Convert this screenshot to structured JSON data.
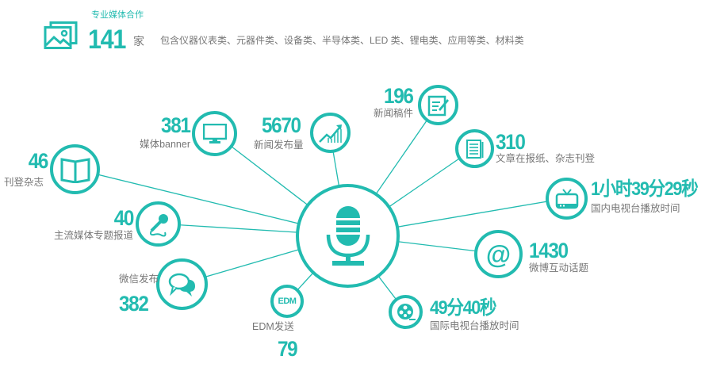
{
  "header": {
    "subtitle": "专业媒体合作",
    "count": "141",
    "unit": "家",
    "description": "包含仪器仪表类、元器件类、设备类、半导体类、LED 类、锂电类、应用等类、材料类",
    "icon": "image-gallery-icon"
  },
  "accent_color": "#22bbb0",
  "center": {
    "icon": "microphone-icon"
  },
  "nodes": [
    {
      "id": "magazine",
      "value": "46",
      "label": "刊登杂志",
      "icon": "open-book-icon"
    },
    {
      "id": "banner",
      "value": "381",
      "label": "媒体banner",
      "icon": "monitor-icon"
    },
    {
      "id": "news-volume",
      "value": "5670",
      "label": "新闻发布量",
      "icon": "growth-chart-icon"
    },
    {
      "id": "press",
      "value": "196",
      "label": "新闻稿件",
      "icon": "document-edit-icon"
    },
    {
      "id": "newspaper",
      "value": "310",
      "label": "文章在报纸、杂志刊登",
      "icon": "newspaper-icon"
    },
    {
      "id": "domestic-tv",
      "value": "1小时39分29秒",
      "label": "国内电视台播放时间",
      "icon": "tv-icon"
    },
    {
      "id": "weibo",
      "value": "1430",
      "label": "微博互动话题",
      "icon": "at-sign-icon"
    },
    {
      "id": "intl-tv",
      "value": "49分40秒",
      "label": "国际电视台播放时间",
      "icon": "film-reel-icon"
    },
    {
      "id": "edm",
      "value": "79",
      "label": "EDM发送",
      "icon": "edm-icon",
      "icon_text": "EDM"
    },
    {
      "id": "wechat",
      "value": "382",
      "label": "微信发布",
      "icon": "chat-bubbles-icon"
    },
    {
      "id": "feature",
      "value": "40",
      "label": "主流媒体专题报道",
      "icon": "handheld-mic-icon"
    }
  ]
}
